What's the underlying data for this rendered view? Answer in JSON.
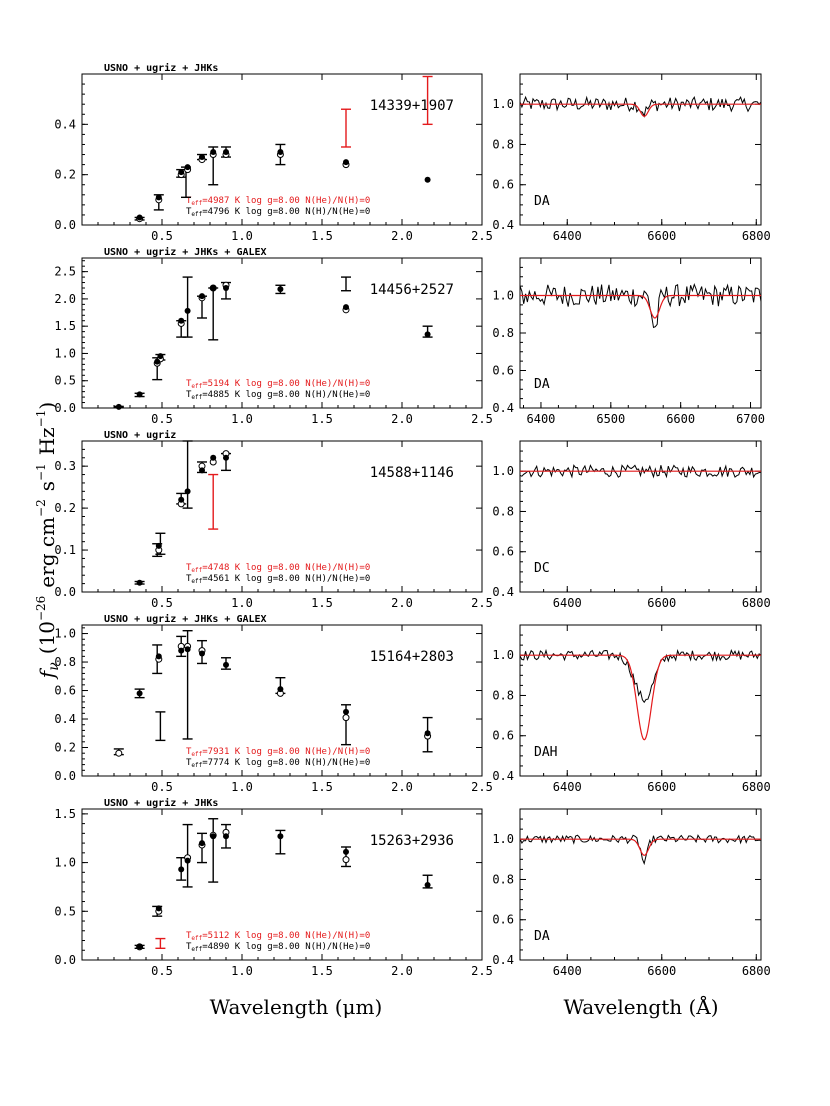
{
  "colors": {
    "model": "#e41a1c",
    "data": "#000000",
    "frame": "#000000"
  },
  "axes": {
    "ylabel": "f_ν (10^-26 erg cm^-2 s^-1 Hz^-1)",
    "ylabel_parts": {
      "f": "f",
      "nu": "ν",
      "open": "(10",
      "e1": "−26",
      "erg": "erg cm",
      "e2": "−2",
      "s": "s",
      "e3": "−1",
      "hz": "Hz",
      "e4": "−1",
      "close": ")"
    },
    "xlabel_left": "Wavelength (μm)",
    "xlabel_right": "Wavelength (Å)"
  },
  "chart_data": [
    {
      "type": "scatter",
      "object": "14339+1907",
      "survey": "USNO + ugriz + JHKs",
      "xlim": [
        0,
        2.5
      ],
      "ylim": [
        0,
        0.6
      ],
      "xticks": [
        0.5,
        1.0,
        1.5,
        2.0,
        2.5
      ],
      "yticks": [
        0.0,
        0.2,
        0.4
      ],
      "model_labels": [
        {
          "teff": "4987",
          "logg": "8.00",
          "comp": "N(He)/N(H)=0",
          "color": "red"
        },
        {
          "teff": "4796",
          "logg": "8.00",
          "comp": "N(H)/N(He)=0",
          "color": "black"
        }
      ],
      "obs": [
        {
          "x": 0.36,
          "y": 0.025,
          "lo": 0.02,
          "hi": 0.03,
          "color": "black"
        },
        {
          "x": 0.48,
          "y": 0.1,
          "lo": 0.06,
          "hi": 0.12,
          "color": "black"
        },
        {
          "x": 0.62,
          "y": 0.2,
          "lo": 0.19,
          "hi": 0.22,
          "color": "black"
        },
        {
          "x": 0.65,
          "y": 0.17,
          "lo": 0.11,
          "hi": 0.23,
          "color": "black"
        },
        {
          "x": 0.75,
          "y": 0.27,
          "lo": 0.26,
          "hi": 0.28,
          "color": "black"
        },
        {
          "x": 0.82,
          "y": 0.235,
          "lo": 0.16,
          "hi": 0.31,
          "color": "black"
        },
        {
          "x": 0.9,
          "y": 0.29,
          "lo": 0.27,
          "hi": 0.31,
          "color": "black"
        },
        {
          "x": 1.24,
          "y": 0.28,
          "lo": 0.24,
          "hi": 0.32,
          "color": "black"
        },
        {
          "x": 1.65,
          "y": 0.385,
          "lo": 0.31,
          "hi": 0.46,
          "color": "red"
        },
        {
          "x": 2.16,
          "y": 0.49,
          "lo": 0.4,
          "hi": 0.59,
          "color": "red"
        }
      ],
      "model_filled": [
        [
          0.36,
          0.03
        ],
        [
          0.48,
          0.11
        ],
        [
          0.62,
          0.21
        ],
        [
          0.66,
          0.23
        ],
        [
          0.75,
          0.27
        ],
        [
          0.82,
          0.29
        ],
        [
          0.9,
          0.29
        ],
        [
          1.24,
          0.29
        ],
        [
          1.65,
          0.25
        ],
        [
          2.16,
          0.18
        ]
      ],
      "model_open": [
        [
          0.36,
          0.025
        ],
        [
          0.48,
          0.1
        ],
        [
          0.62,
          0.2
        ],
        [
          0.66,
          0.22
        ],
        [
          0.75,
          0.26
        ],
        [
          0.82,
          0.28
        ],
        [
          0.9,
          0.28
        ],
        [
          1.24,
          0.28
        ],
        [
          1.65,
          0.24
        ]
      ],
      "spectrum": {
        "class": "DA",
        "xlim": [
          6300,
          6810
        ],
        "ylim": [
          0.4,
          1.15
        ],
        "xticks": [
          6400,
          6600,
          6800
        ],
        "yticks": [
          0.4,
          0.6,
          0.8,
          1.0
        ],
        "noise": 0.035,
        "depth": 0.04,
        "width": 10,
        "model_depth": 0.06,
        "model_width": 10
      }
    },
    {
      "type": "scatter",
      "object": "14456+2527",
      "survey": "USNO + ugriz + JHKs + GALEX",
      "xlim": [
        0,
        2.5
      ],
      "ylim": [
        0,
        2.75
      ],
      "xticks": [
        0.5,
        1.0,
        1.5,
        2.0,
        2.5
      ],
      "yticks": [
        0.0,
        0.5,
        1.0,
        1.5,
        2.0,
        2.5
      ],
      "model_labels": [
        {
          "teff": "5194",
          "logg": "8.00",
          "comp": "N(He)/N(H)=0",
          "color": "red"
        },
        {
          "teff": "4885",
          "logg": "8.00",
          "comp": "N(H)/N(He)=0",
          "color": "black"
        }
      ],
      "obs": [
        {
          "x": 0.23,
          "y": 0.02,
          "lo": 0.01,
          "hi": 0.03,
          "color": "black"
        },
        {
          "x": 0.36,
          "y": 0.24,
          "lo": 0.21,
          "hi": 0.27,
          "color": "black"
        },
        {
          "x": 0.47,
          "y": 0.72,
          "lo": 0.52,
          "hi": 0.92,
          "color": "black"
        },
        {
          "x": 0.49,
          "y": 0.93,
          "lo": 0.88,
          "hi": 0.98,
          "color": "black"
        },
        {
          "x": 0.62,
          "y": 1.45,
          "lo": 1.3,
          "hi": 1.6,
          "color": "black"
        },
        {
          "x": 0.66,
          "y": 1.85,
          "lo": 1.3,
          "hi": 2.4,
          "color": "black"
        },
        {
          "x": 0.75,
          "y": 1.85,
          "lo": 1.65,
          "hi": 2.05,
          "color": "black"
        },
        {
          "x": 0.82,
          "y": 1.72,
          "lo": 1.25,
          "hi": 2.2,
          "color": "black"
        },
        {
          "x": 0.9,
          "y": 2.15,
          "lo": 2.0,
          "hi": 2.3,
          "color": "black"
        },
        {
          "x": 1.24,
          "y": 2.18,
          "lo": 2.1,
          "hi": 2.25,
          "color": "black"
        },
        {
          "x": 1.65,
          "y": 2.27,
          "lo": 2.15,
          "hi": 2.4,
          "color": "black"
        },
        {
          "x": 2.16,
          "y": 1.4,
          "lo": 1.3,
          "hi": 1.5,
          "color": "black"
        }
      ],
      "model_filled": [
        [
          0.23,
          0.02
        ],
        [
          0.36,
          0.25
        ],
        [
          0.47,
          0.85
        ],
        [
          0.49,
          0.95
        ],
        [
          0.62,
          1.6
        ],
        [
          0.66,
          1.78
        ],
        [
          0.75,
          2.05
        ],
        [
          0.82,
          2.2
        ],
        [
          0.9,
          2.2
        ],
        [
          1.24,
          2.18
        ],
        [
          1.65,
          1.85
        ],
        [
          2.16,
          1.35
        ]
      ],
      "model_open": [
        [
          0.47,
          0.82
        ],
        [
          0.49,
          0.9
        ],
        [
          0.62,
          1.55
        ],
        [
          0.75,
          2.02
        ],
        [
          0.82,
          2.2
        ],
        [
          0.9,
          2.25
        ],
        [
          1.65,
          1.8
        ]
      ],
      "spectrum": {
        "class": "DA",
        "xlim": [
          6370,
          6715
        ],
        "ylim": [
          0.4,
          1.2
        ],
        "xticks": [
          6400,
          6500,
          6600,
          6700
        ],
        "yticks": [
          0.4,
          0.6,
          0.8,
          1.0
        ],
        "noise": 0.06,
        "depth": 0.18,
        "width": 6,
        "model_depth": 0.12,
        "model_width": 8
      }
    },
    {
      "type": "scatter",
      "object": "14588+1146",
      "survey": "USNO + ugriz",
      "xlim": [
        0,
        2.5
      ],
      "ylim": [
        0,
        0.36
      ],
      "xticks": [
        0.5,
        1.0,
        1.5,
        2.0,
        2.5
      ],
      "yticks": [
        0.0,
        0.1,
        0.2,
        0.3
      ],
      "model_labels": [
        {
          "teff": "4748",
          "logg": "8.00",
          "comp": "N(He)/N(H)=0",
          "color": "red"
        },
        {
          "teff": "4561",
          "logg": "8.00",
          "comp": "N(H)/N(He)=0",
          "color": "black"
        }
      ],
      "obs": [
        {
          "x": 0.36,
          "y": 0.022,
          "lo": 0.019,
          "hi": 0.025,
          "color": "black"
        },
        {
          "x": 0.47,
          "y": 0.1,
          "lo": 0.085,
          "hi": 0.115,
          "color": "black"
        },
        {
          "x": 0.49,
          "y": 0.115,
          "lo": 0.09,
          "hi": 0.14,
          "color": "black"
        },
        {
          "x": 0.62,
          "y": 0.22,
          "lo": 0.21,
          "hi": 0.235,
          "color": "black"
        },
        {
          "x": 0.66,
          "y": 0.28,
          "lo": 0.2,
          "hi": 0.36,
          "color": "black"
        },
        {
          "x": 0.75,
          "y": 0.3,
          "lo": 0.285,
          "hi": 0.31,
          "color": "black"
        },
        {
          "x": 0.82,
          "y": 0.215,
          "lo": 0.15,
          "hi": 0.28,
          "color": "red"
        },
        {
          "x": 0.9,
          "y": 0.31,
          "lo": 0.29,
          "hi": 0.33,
          "color": "black"
        }
      ],
      "model_filled": [
        [
          0.36,
          0.022
        ],
        [
          0.48,
          0.11
        ],
        [
          0.62,
          0.22
        ],
        [
          0.66,
          0.24
        ],
        [
          0.75,
          0.29
        ],
        [
          0.82,
          0.32
        ],
        [
          0.9,
          0.32
        ]
      ],
      "model_open": [
        [
          0.48,
          0.1
        ],
        [
          0.62,
          0.21
        ],
        [
          0.75,
          0.3
        ],
        [
          0.82,
          0.31
        ],
        [
          0.9,
          0.33
        ]
      ],
      "spectrum": {
        "class": "DC",
        "xlim": [
          6300,
          6810
        ],
        "ylim": [
          0.4,
          1.15
        ],
        "xticks": [
          6400,
          6600,
          6800
        ],
        "yticks": [
          0.4,
          0.6,
          0.8,
          1.0
        ],
        "noise": 0.03,
        "depth": 0.0,
        "width": 10,
        "model_depth": 0.0,
        "model_width": 10
      }
    },
    {
      "type": "scatter",
      "object": "15164+2803",
      "survey": "USNO + ugriz + JHKs + GALEX",
      "xlim": [
        0,
        2.5
      ],
      "ylim": [
        0,
        1.06
      ],
      "xticks": [
        0.5,
        1.0,
        1.5,
        2.0,
        2.5
      ],
      "yticks": [
        0.0,
        0.2,
        0.4,
        0.6,
        0.8,
        1.0
      ],
      "model_labels": [
        {
          "teff": "7931",
          "logg": "8.00",
          "comp": "N(He)/N(H)=0",
          "color": "red"
        },
        {
          "teff": "7774",
          "logg": "8.00",
          "comp": "N(H)/N(He)=0",
          "color": "black"
        }
      ],
      "obs": [
        {
          "x": 0.23,
          "y": 0.17,
          "lo": 0.15,
          "hi": 0.19,
          "color": "black"
        },
        {
          "x": 0.36,
          "y": 0.58,
          "lo": 0.55,
          "hi": 0.61,
          "color": "black"
        },
        {
          "x": 0.47,
          "y": 0.82,
          "lo": 0.72,
          "hi": 0.92,
          "color": "black"
        },
        {
          "x": 0.49,
          "y": 0.35,
          "lo": 0.25,
          "hi": 0.45,
          "color": "black"
        },
        {
          "x": 0.62,
          "y": 0.91,
          "lo": 0.84,
          "hi": 0.98,
          "color": "black"
        },
        {
          "x": 0.66,
          "y": 0.64,
          "lo": 0.26,
          "hi": 1.02,
          "color": "black"
        },
        {
          "x": 0.75,
          "y": 0.87,
          "lo": 0.79,
          "hi": 0.95,
          "color": "black"
        },
        {
          "x": 0.9,
          "y": 0.79,
          "lo": 0.75,
          "hi": 0.83,
          "color": "black"
        },
        {
          "x": 1.24,
          "y": 0.63,
          "lo": 0.58,
          "hi": 0.69,
          "color": "black"
        },
        {
          "x": 1.65,
          "y": 0.39,
          "lo": 0.22,
          "hi": 0.5,
          "color": "black"
        },
        {
          "x": 2.16,
          "y": 0.29,
          "lo": 0.17,
          "hi": 0.41,
          "color": "black"
        }
      ],
      "model_filled": [
        [
          0.36,
          0.58
        ],
        [
          0.48,
          0.84
        ],
        [
          0.62,
          0.88
        ],
        [
          0.66,
          0.89
        ],
        [
          0.75,
          0.86
        ],
        [
          0.9,
          0.78
        ],
        [
          1.24,
          0.61
        ],
        [
          1.65,
          0.45
        ],
        [
          2.16,
          0.3
        ]
      ],
      "model_open": [
        [
          0.23,
          0.16
        ],
        [
          0.48,
          0.82
        ],
        [
          0.62,
          0.91
        ],
        [
          0.66,
          0.91
        ],
        [
          0.75,
          0.88
        ],
        [
          1.24,
          0.58
        ],
        [
          1.65,
          0.41
        ],
        [
          2.16,
          0.28
        ]
      ],
      "spectrum": {
        "class": "DAH",
        "xlim": [
          6300,
          6810
        ],
        "ylim": [
          0.4,
          1.15
        ],
        "xticks": [
          6400,
          6600,
          6800
        ],
        "yticks": [
          0.4,
          0.6,
          0.8,
          1.0
        ],
        "noise": 0.025,
        "depth": 0.22,
        "width": 28,
        "model_depth": 0.42,
        "model_width": 18
      }
    },
    {
      "type": "scatter",
      "object": "15263+2936",
      "survey": "USNO + ugriz + JHKs",
      "xlim": [
        0,
        2.5
      ],
      "ylim": [
        0,
        1.55
      ],
      "xticks": [
        0.5,
        1.0,
        1.5,
        2.0,
        2.5
      ],
      "yticks": [
        0.0,
        0.5,
        1.0,
        1.5
      ],
      "model_labels": [
        {
          "teff": "5112",
          "logg": "8.00",
          "comp": "N(He)/N(H)=0",
          "color": "red"
        },
        {
          "teff": "4890",
          "logg": "8.00",
          "comp": "N(H)/N(He)=0",
          "color": "black"
        }
      ],
      "obs": [
        {
          "x": 0.36,
          "y": 0.135,
          "lo": 0.12,
          "hi": 0.15,
          "color": "black"
        },
        {
          "x": 0.47,
          "y": 0.5,
          "lo": 0.45,
          "hi": 0.55,
          "color": "black"
        },
        {
          "x": 0.49,
          "y": 0.17,
          "lo": 0.12,
          "hi": 0.22,
          "color": "red"
        },
        {
          "x": 0.62,
          "y": 0.93,
          "lo": 0.82,
          "hi": 1.05,
          "color": "black"
        },
        {
          "x": 0.66,
          "y": 1.07,
          "lo": 0.75,
          "hi": 1.39,
          "color": "black"
        },
        {
          "x": 0.75,
          "y": 1.15,
          "lo": 1.0,
          "hi": 1.3,
          "color": "black"
        },
        {
          "x": 0.82,
          "y": 1.1,
          "lo": 0.8,
          "hi": 1.45,
          "color": "black"
        },
        {
          "x": 0.9,
          "y": 1.27,
          "lo": 1.15,
          "hi": 1.39,
          "color": "black"
        },
        {
          "x": 1.24,
          "y": 1.21,
          "lo": 1.09,
          "hi": 1.33,
          "color": "black"
        },
        {
          "x": 1.65,
          "y": 1.06,
          "lo": 0.96,
          "hi": 1.16,
          "color": "black"
        },
        {
          "x": 2.16,
          "y": 0.8,
          "lo": 0.74,
          "hi": 0.87,
          "color": "black"
        }
      ],
      "model_filled": [
        [
          0.36,
          0.14
        ],
        [
          0.48,
          0.53
        ],
        [
          0.62,
          0.93
        ],
        [
          0.66,
          1.02
        ],
        [
          0.75,
          1.2
        ],
        [
          0.82,
          1.27
        ],
        [
          0.9,
          1.27
        ],
        [
          1.24,
          1.27
        ],
        [
          1.65,
          1.11
        ],
        [
          2.16,
          0.77
        ]
      ],
      "model_open": [
        [
          0.36,
          0.135
        ],
        [
          0.48,
          0.5
        ],
        [
          0.66,
          1.05
        ],
        [
          0.75,
          1.18
        ],
        [
          0.82,
          1.28
        ],
        [
          0.9,
          1.31
        ],
        [
          1.65,
          1.03
        ]
      ],
      "spectrum": {
        "class": "DA",
        "xlim": [
          6300,
          6810
        ],
        "ylim": [
          0.4,
          1.15
        ],
        "xticks": [
          6400,
          6600,
          6800
        ],
        "yticks": [
          0.4,
          0.6,
          0.8,
          1.0
        ],
        "noise": 0.02,
        "depth": 0.12,
        "width": 9,
        "model_depth": 0.08,
        "model_width": 11
      }
    }
  ]
}
